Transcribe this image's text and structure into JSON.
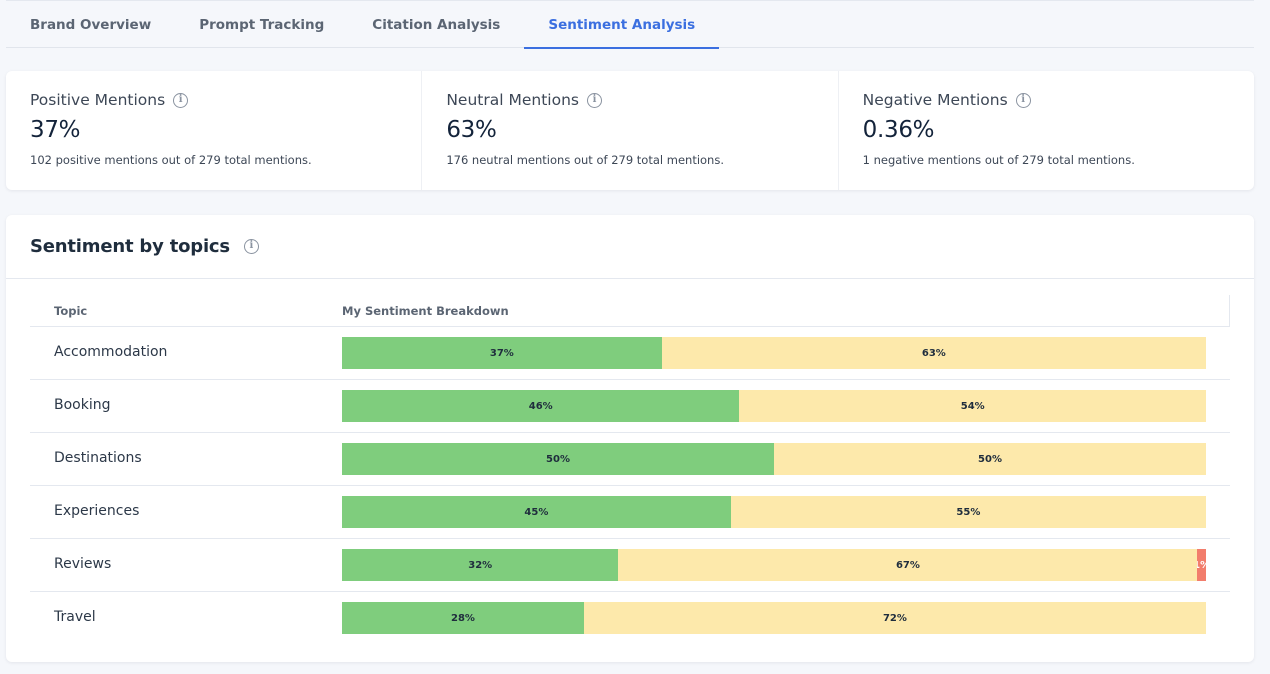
{
  "tabs": [
    {
      "label": "Brand Overview",
      "active": false
    },
    {
      "label": "Prompt Tracking",
      "active": false
    },
    {
      "label": "Citation Analysis",
      "active": false
    },
    {
      "label": "Sentiment Analysis",
      "active": true
    }
  ],
  "summary": [
    {
      "title": "Positive Mentions",
      "value": "37%",
      "desc": "102 positive mentions out of 279 total mentions."
    },
    {
      "title": "Neutral Mentions",
      "value": "63%",
      "desc": "176 neutral mentions out of 279 total mentions."
    },
    {
      "title": "Negative Mentions",
      "value": "0.36%",
      "desc": "1 negative mentions out of 279 total mentions."
    }
  ],
  "icons": {
    "info": "info-icon"
  },
  "colors": {
    "positive": "#7fcd7d",
    "neutral": "#fde9ab",
    "negative": "#f27d6c",
    "accent": "#3b6fe0"
  },
  "topics_panel": {
    "title": "Sentiment by topics",
    "columns": {
      "topic": "Topic",
      "breakdown": "My Sentiment Breakdown"
    },
    "rows": [
      {
        "topic": "Accommodation",
        "positive": 37,
        "neutral": 63,
        "negative": 0
      },
      {
        "topic": "Booking",
        "positive": 46,
        "neutral": 54,
        "negative": 0
      },
      {
        "topic": "Destinations",
        "positive": 50,
        "neutral": 50,
        "negative": 0
      },
      {
        "topic": "Experiences",
        "positive": 45,
        "neutral": 55,
        "negative": 0
      },
      {
        "topic": "Reviews",
        "positive": 32,
        "neutral": 67,
        "negative": 1
      },
      {
        "topic": "Travel",
        "positive": 28,
        "neutral": 72,
        "negative": 0
      }
    ]
  }
}
